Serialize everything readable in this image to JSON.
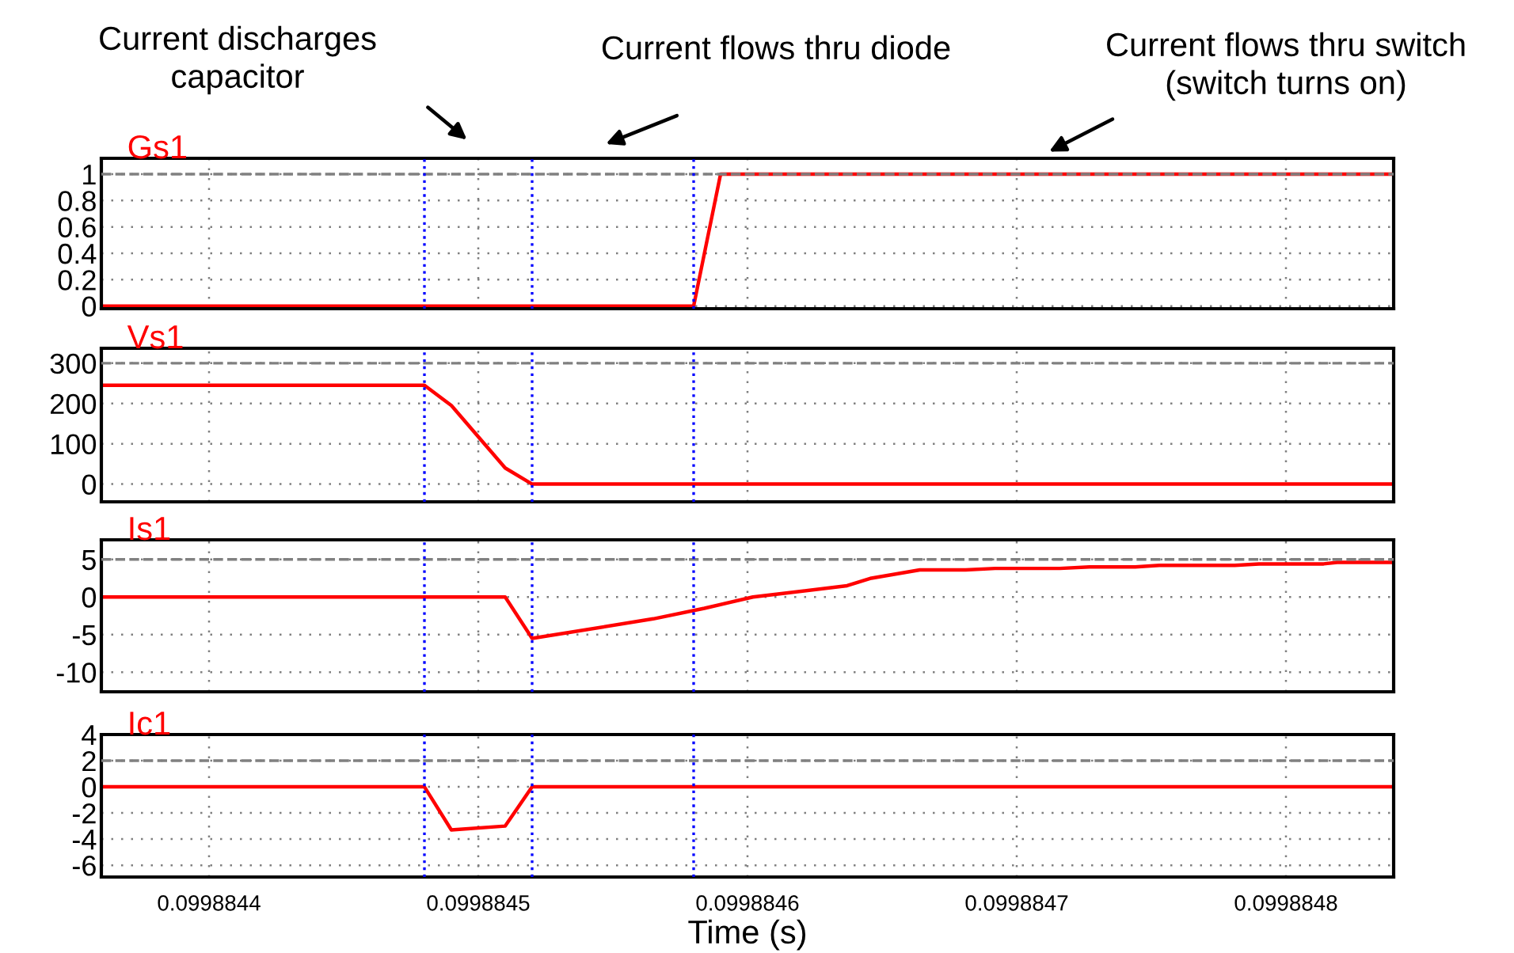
{
  "chart_data": [
    {
      "type": "line",
      "title": "Gs1",
      "x": [
        0.09988436,
        0.09988458,
        0.09988459,
        0.09988484
      ],
      "series": [
        {
          "color": "#ff0000",
          "values": [
            0,
            0,
            1,
            1
          ]
        }
      ],
      "xlim": [
        0.09988436,
        0.09988484
      ],
      "xticks": [
        0.0998844,
        0.0998845,
        0.0998846,
        0.0998847,
        0.0998848
      ],
      "ylim": [
        -0.02,
        1.12
      ],
      "yticks": [
        0,
        0.2,
        0.4,
        0.6,
        0.8,
        1
      ],
      "grid": true,
      "tick_labels": "y",
      "ref_lines": [
        {
          "axis": "y",
          "value": 1,
          "color": "#808080",
          "line_style": "dashed"
        },
        {
          "axis": "x",
          "value": 0.09988448,
          "color": "#0000ff",
          "line_style": "dotted"
        },
        {
          "axis": "x",
          "value": 0.09988452,
          "color": "#0000ff",
          "line_style": "dotted"
        },
        {
          "axis": "x",
          "value": 0.09988458,
          "color": "#0000ff",
          "line_style": "dotted"
        }
      ],
      "annotations": [
        "Current discharges\ncapacitor",
        "Current flows thru diode",
        "Current flows thru switch\n(switch turns on)"
      ]
    },
    {
      "type": "line",
      "title": "Vs1",
      "x": [
        0.09988436,
        0.09988448,
        0.09988449,
        0.09988451,
        0.09988452,
        0.09988484
      ],
      "series": [
        {
          "color": "#ff0000",
          "values": [
            245,
            245,
            195,
            40,
            0,
            0
          ]
        }
      ],
      "xlim": [
        0.09988436,
        0.09988484
      ],
      "xticks": [
        0.0998844,
        0.0998845,
        0.0998846,
        0.0998847,
        0.0998848
      ],
      "ylim": [
        -44,
        337
      ],
      "yticks": [
        0,
        100,
        200,
        300
      ],
      "grid": true,
      "tick_labels": "y",
      "ref_lines": [
        {
          "axis": "y",
          "value": 300,
          "color": "#808080",
          "line_style": "dashed"
        },
        {
          "axis": "x",
          "value": 0.09988448,
          "color": "#0000ff",
          "line_style": "dotted"
        },
        {
          "axis": "x",
          "value": 0.09988452,
          "color": "#0000ff",
          "line_style": "dotted"
        },
        {
          "axis": "x",
          "value": 0.09988458,
          "color": "#0000ff",
          "line_style": "dotted"
        }
      ]
    },
    {
      "type": "line",
      "title": "Is1",
      "x": [
        0.09988436,
        0.09988451,
        0.09988452,
        0.099884565,
        0.099884584,
        0.099884602,
        0.099884637,
        0.099884646,
        0.099884664,
        0.099884681,
        0.099884692,
        0.099884716,
        0.099884727,
        0.099884744,
        0.099884753,
        0.099884781,
        0.09988479,
        0.099884814,
        0.099884819,
        0.09988484
      ],
      "series": [
        {
          "color": "#ff0000",
          "values": [
            0,
            0,
            -5.5,
            -2.9,
            -1.5,
            0,
            1.5,
            2.5,
            3.6,
            3.6,
            3.8,
            3.8,
            4.0,
            4.0,
            4.2,
            4.2,
            4.4,
            4.4,
            4.6,
            4.6
          ]
        }
      ],
      "xlim": [
        0.09988436,
        0.09988484
      ],
      "xticks": [
        0.0998844,
        0.0998845,
        0.0998846,
        0.0998847,
        0.0998848
      ],
      "ylim": [
        -12.6,
        7.6
      ],
      "yticks": [
        -10,
        -5,
        0,
        5
      ],
      "grid": true,
      "tick_labels": "y",
      "ref_lines": [
        {
          "axis": "y",
          "value": 5,
          "color": "#808080",
          "line_style": "dashed"
        },
        {
          "axis": "x",
          "value": 0.09988448,
          "color": "#0000ff",
          "line_style": "dotted"
        },
        {
          "axis": "x",
          "value": 0.09988452,
          "color": "#0000ff",
          "line_style": "dotted"
        },
        {
          "axis": "x",
          "value": 0.09988458,
          "color": "#0000ff",
          "line_style": "dotted"
        }
      ]
    },
    {
      "type": "line",
      "title": "Ic1",
      "xlabel": "Time (s)",
      "x": [
        0.09988436,
        0.09988448,
        0.09988449,
        0.09988451,
        0.09988452,
        0.09988484
      ],
      "series": [
        {
          "color": "#ff0000",
          "values": [
            0,
            0,
            -3.3,
            -3.0,
            0,
            0
          ]
        }
      ],
      "xlim": [
        0.09988436,
        0.09988484
      ],
      "xticks": [
        0.0998844,
        0.0998845,
        0.0998846,
        0.0998847,
        0.0998848
      ],
      "ylim": [
        -6.9,
        4
      ],
      "yticks": [
        -6,
        -4,
        -2,
        0,
        2,
        4
      ],
      "grid": true,
      "ref_lines": [
        {
          "axis": "y",
          "value": 2,
          "color": "#808080",
          "line_style": "dashed"
        },
        {
          "axis": "x",
          "value": 0.09988448,
          "color": "#0000ff",
          "line_style": "dotted"
        },
        {
          "axis": "x",
          "value": 0.09988452,
          "color": "#0000ff",
          "line_style": "dotted"
        },
        {
          "axis": "x",
          "value": 0.09988458,
          "color": "#0000ff",
          "line_style": "dotted"
        }
      ]
    }
  ]
}
